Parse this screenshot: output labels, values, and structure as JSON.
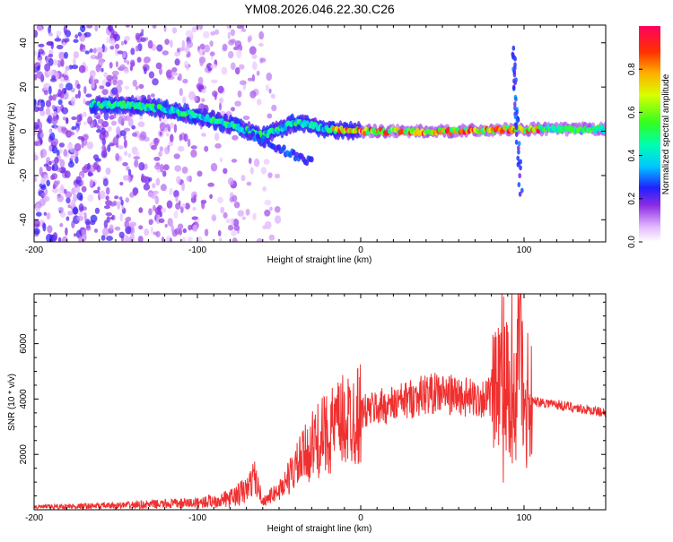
{
  "title": "YM08.2026.046.22.30.C26",
  "chart_data": [
    {
      "type": "heatmap",
      "xlabel": "Height of straight line (km)",
      "ylabel": "Frequency (Hz)",
      "xlim": [
        -200,
        150
      ],
      "ylim": [
        -50,
        48
      ],
      "xticks": [
        -200,
        -100,
        0,
        100
      ],
      "yticks": [
        -40,
        -20,
        0,
        20,
        40
      ],
      "ridge": {
        "x": [
          -160,
          -140,
          -120,
          -100,
          -80,
          -60,
          -40,
          -20,
          0,
          50,
          100,
          150
        ],
        "y": [
          12,
          12,
          10,
          7,
          3,
          -2,
          4,
          1,
          0,
          0,
          1,
          1
        ]
      },
      "colorbar": {
        "label": "Normalized spectral amplitude",
        "range": [
          0.0,
          1.0
        ],
        "ticks": [
          0.0,
          0.2,
          0.4,
          0.6,
          0.8
        ],
        "tick_labels": [
          "0.0",
          "0.2",
          "0.4",
          "0.6",
          "0.8"
        ]
      }
    },
    {
      "type": "line",
      "xlabel": "Height of straight line (km)",
      "ylabel": "SNR (10 * v/v)",
      "xlim": [
        -200,
        150
      ],
      "ylim": [
        0,
        7800
      ],
      "xticks": [
        -200,
        -100,
        0,
        100
      ],
      "yticks": [
        2000,
        4000,
        6000
      ],
      "color": "#f03030",
      "series": [
        {
          "name": "SNR",
          "x": [
            -200,
            -150,
            -100,
            -80,
            -70,
            -65,
            -60,
            -50,
            -40,
            -30,
            -20,
            -10,
            0,
            10,
            20,
            30,
            40,
            50,
            60,
            70,
            80,
            85,
            90,
            95,
            98,
            100,
            103,
            110,
            120,
            130,
            140,
            150
          ],
          "y": [
            100,
            150,
            250,
            400,
            700,
            1200,
            300,
            700,
            1500,
            2300,
            2800,
            3200,
            3500,
            3700,
            3800,
            4000,
            4200,
            4200,
            4100,
            4000,
            4100,
            4300,
            4500,
            3800,
            7700,
            2400,
            3900,
            3900,
            3800,
            3700,
            3600,
            3500
          ]
        }
      ]
    }
  ]
}
